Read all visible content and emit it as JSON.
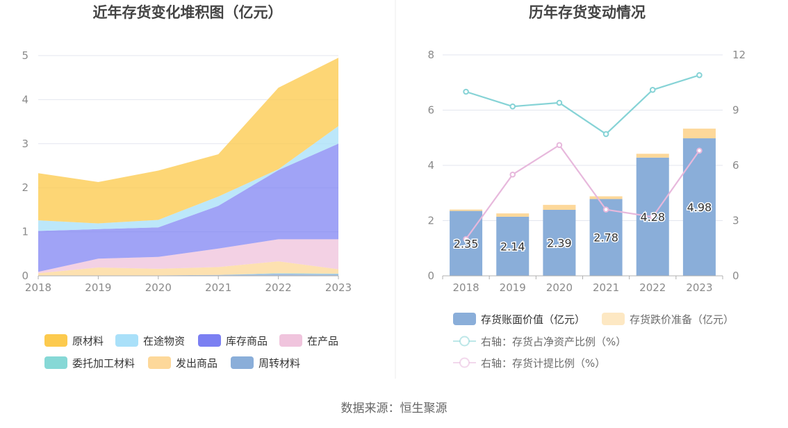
{
  "source_text": "数据来源：恒生聚源",
  "colors": {
    "raw": "#fcca4e",
    "transit": "#a9e0f9",
    "goods": "#7b7ff2",
    "wip": "#f0c4dd",
    "processing": "#86d8d6",
    "shipped": "#fdd89a",
    "turnover": "#8aaed9",
    "book": "#8aaed9",
    "reserve": "#fde8c3",
    "ratio_net": "#86d3d6",
    "ratio_prov": "#e7b8dc"
  },
  "chart_data": [
    {
      "type": "area",
      "stacked": true,
      "title": "近年存货变化堆积图（亿元）",
      "categories": [
        "2018",
        "2019",
        "2020",
        "2021",
        "2022",
        "2023"
      ],
      "ylim": [
        0,
        5
      ],
      "yticks": [
        "0",
        "1",
        "2",
        "3",
        "4",
        "5"
      ],
      "grid": true,
      "legend_position": "bottom",
      "series": [
        {
          "name": "周转材料",
          "key": "turnover",
          "values": [
            0.01,
            0.01,
            0.01,
            0.02,
            0.05,
            0.04
          ]
        },
        {
          "name": "委托加工材料",
          "key": "processing",
          "values": [
            0.0,
            0.0,
            0.0,
            0.0,
            0.01,
            0.01
          ]
        },
        {
          "name": "发出商品",
          "key": "shipped",
          "values": [
            0.05,
            0.18,
            0.15,
            0.18,
            0.27,
            0.1
          ]
        },
        {
          "name": "在产品",
          "key": "wip",
          "values": [
            0.03,
            0.2,
            0.27,
            0.42,
            0.5,
            0.68
          ]
        },
        {
          "name": "库存商品",
          "key": "goods",
          "values": [
            0.93,
            0.67,
            0.67,
            0.97,
            1.57,
            2.17
          ]
        },
        {
          "name": "在途物资",
          "key": "transit",
          "values": [
            0.24,
            0.13,
            0.17,
            0.21,
            0.02,
            0.4
          ]
        },
        {
          "name": "原材料",
          "key": "raw",
          "values": [
            1.07,
            0.94,
            1.12,
            0.96,
            1.85,
            1.55
          ]
        }
      ],
      "legend_order": [
        "原材料",
        "在途物资",
        "库存商品",
        "在产品",
        "委托加工材料",
        "发出商品",
        "周转材料"
      ]
    },
    {
      "type": "bar",
      "stacked": true,
      "title": "历年存货变动情况",
      "categories": [
        "2018",
        "2019",
        "2020",
        "2021",
        "2022",
        "2023"
      ],
      "ylim": [
        0,
        8
      ],
      "yticks": [
        "0",
        "2",
        "4",
        "6",
        "8"
      ],
      "y2lim": [
        0,
        12
      ],
      "y2ticks": [
        "0",
        "3",
        "6",
        "9",
        "12"
      ],
      "grid": true,
      "legend_position": "bottom",
      "series": [
        {
          "name": "存货账面价值（亿元）",
          "key": "book",
          "values": [
            2.35,
            2.14,
            2.39,
            2.78,
            4.28,
            4.98
          ],
          "labels": [
            "2.35",
            "2.14",
            "2.39",
            "2.78",
            "4.28",
            "4.98"
          ]
        },
        {
          "name": "存货跌价准备（亿元）",
          "key": "reserve",
          "values": [
            0.05,
            0.12,
            0.18,
            0.1,
            0.14,
            0.35
          ]
        }
      ],
      "line_series": [
        {
          "name": "右轴：存货占净资产比例（%）",
          "key": "ratio_net",
          "axis": "right",
          "values": [
            10.0,
            9.2,
            9.4,
            7.7,
            10.1,
            10.9
          ]
        },
        {
          "name": "右轴：存货计提比例（%）",
          "key": "ratio_prov",
          "axis": "right",
          "values": [
            2.0,
            5.5,
            7.1,
            3.6,
            3.2,
            6.8
          ]
        }
      ]
    }
  ]
}
